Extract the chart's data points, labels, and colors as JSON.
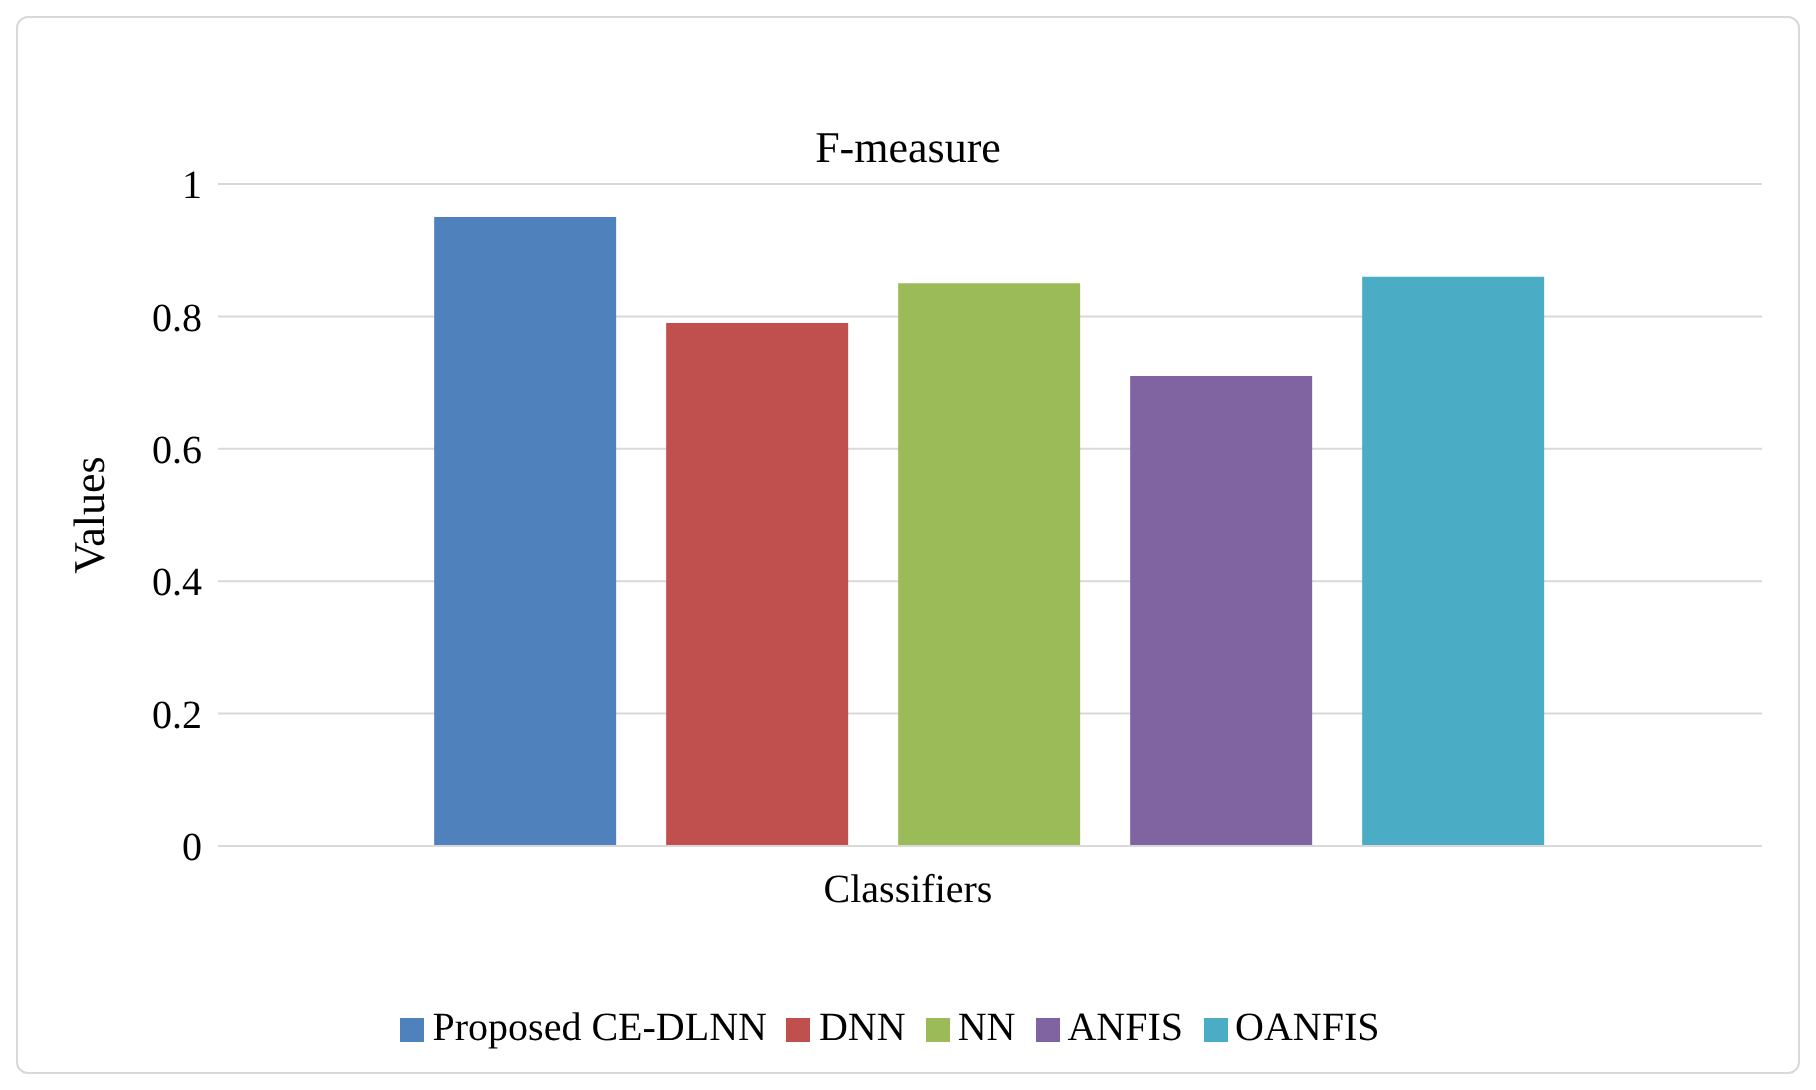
{
  "chart_data": {
    "type": "bar",
    "title": "F-measure",
    "xlabel": "Classifiers",
    "ylabel": "Values",
    "categories": [
      null
    ],
    "series": [
      {
        "name": "Proposed CE-DLNN",
        "color": "#4f81bd",
        "values": [
          0.95
        ]
      },
      {
        "name": "DNN",
        "color": "#c0504d",
        "values": [
          0.79
        ]
      },
      {
        "name": "NN",
        "color": "#9bbb59",
        "values": [
          0.85
        ]
      },
      {
        "name": "ANFIS",
        "color": "#8064a2",
        "values": [
          0.71
        ]
      },
      {
        "name": "OANFIS",
        "color": "#4bacc6",
        "values": [
          0.86
        ]
      }
    ],
    "ylim": [
      0,
      1
    ],
    "yticks": [
      0,
      0.2,
      0.4,
      0.6,
      0.8,
      1
    ],
    "grid": "y",
    "legend": "bottom"
  }
}
